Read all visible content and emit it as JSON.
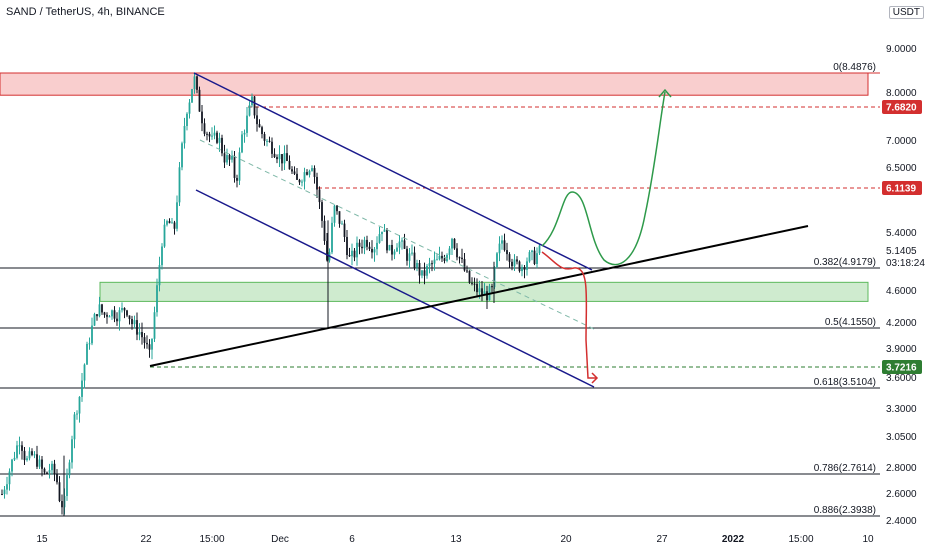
{
  "header": {
    "title": "SAND / TetherUS, 4h, BINANCE",
    "unit": "USDT"
  },
  "chart_data": {
    "type": "candlestick",
    "symbol": "SAND / TetherUS",
    "interval": "4h",
    "exchange": "BINANCE",
    "yaxis": {
      "ticks": [
        "9.0000",
        "8.0000",
        "7.0000",
        "6.5000",
        "5.4000",
        "4.6000",
        "4.2000",
        "3.9000",
        "3.6000",
        "3.3000",
        "3.0500",
        "2.8000",
        "2.6000",
        "2.4000"
      ],
      "range": [
        2.39,
        10.0
      ]
    },
    "xaxis": {
      "ticks": [
        "15",
        "22",
        "15:00",
        "Dec",
        "6",
        "13",
        "20",
        "27",
        "2022",
        "15:00",
        "10"
      ]
    },
    "price_tags": [
      {
        "value": "7.6820",
        "color": "#d32f2f"
      },
      {
        "value": "6.1139",
        "color": "#d32f2f"
      },
      {
        "value": "3.7216",
        "color": "#2e7d32"
      }
    ],
    "current_price": {
      "value": "5.1405",
      "countdown": "03:18:24"
    },
    "fib_levels": [
      {
        "label": "0(8.4876)",
        "value": 8.4876
      },
      {
        "label": "0.382(4.9179)",
        "value": 4.9179
      },
      {
        "label": "0.5(4.1550)",
        "value": 4.155
      },
      {
        "label": "0.618(3.5104)",
        "value": 3.5104
      },
      {
        "label": "0.786(2.7614)",
        "value": 2.7614
      },
      {
        "label": "0.886(2.3938)",
        "value": 2.3938
      }
    ],
    "zones": [
      {
        "name": "resistance",
        "from": 7.95,
        "to": 8.4876,
        "color": "#f4a6a6"
      },
      {
        "name": "support",
        "from": 4.47,
        "to": 4.72,
        "color": "#a8dba8"
      }
    ],
    "candle_colors": {
      "up": "#26a69a",
      "down": "#131722"
    },
    "accent_colors": {
      "channel": "#1a1a8c",
      "trendline": "#000000",
      "bull_path": "#2e9a4a",
      "bear_path": "#d32f2f"
    }
  }
}
